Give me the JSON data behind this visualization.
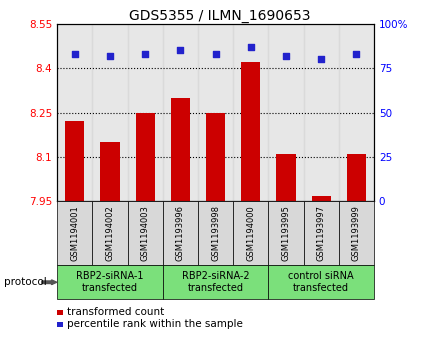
{
  "title": "GDS5355 / ILMN_1690653",
  "samples": [
    "GSM1194001",
    "GSM1194002",
    "GSM1194003",
    "GSM1193996",
    "GSM1193998",
    "GSM1194000",
    "GSM1193995",
    "GSM1193997",
    "GSM1193999"
  ],
  "bar_values": [
    8.22,
    8.15,
    8.25,
    8.3,
    8.25,
    8.42,
    8.11,
    7.97,
    8.11
  ],
  "dot_values": [
    83,
    82,
    83,
    85,
    83,
    87,
    82,
    80,
    83
  ],
  "ylim_left": [
    7.95,
    8.55
  ],
  "ylim_right": [
    0,
    100
  ],
  "yticks_left": [
    7.95,
    8.1,
    8.25,
    8.4,
    8.55
  ],
  "yticks_right": [
    0,
    25,
    50,
    75,
    100
  ],
  "ytick_labels_left": [
    "7.95",
    "8.1",
    "8.25",
    "8.4",
    "8.55"
  ],
  "ytick_labels_right": [
    "0",
    "25",
    "50",
    "75",
    "100%"
  ],
  "hlines": [
    8.1,
    8.25,
    8.4
  ],
  "bar_color": "#cc0000",
  "dot_color": "#2222cc",
  "groups": [
    {
      "label": "RBP2-siRNA-1\ntransfected",
      "start": 0,
      "end": 3,
      "color": "#7be07b"
    },
    {
      "label": "RBP2-siRNA-2\ntransfected",
      "start": 3,
      "end": 6,
      "color": "#7be07b"
    },
    {
      "label": "control siRNA\ntransfected",
      "start": 6,
      "end": 9,
      "color": "#7be07b"
    }
  ],
  "legend_bar_label": "transformed count",
  "legend_dot_label": "percentile rank within the sample",
  "protocol_label": "protocol",
  "bar_bottom": 7.95,
  "sample_box_color": "#d8d8d8",
  "group_border_color": "#000000"
}
